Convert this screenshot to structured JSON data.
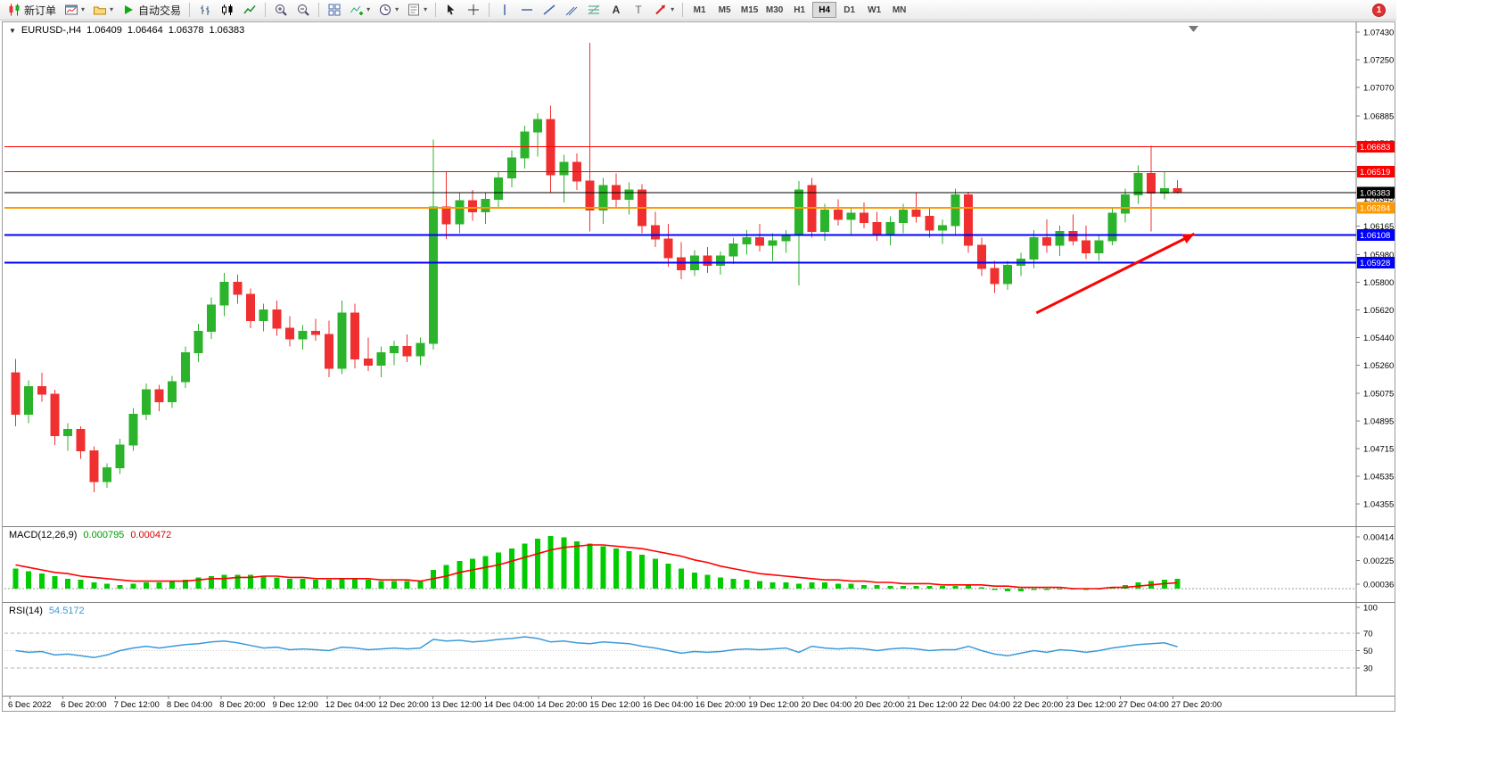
{
  "app": {
    "toolbar": {
      "new_order": "新订单",
      "autotrading": "自动交易",
      "timeframes": [
        "M1",
        "M5",
        "M15",
        "M30",
        "H1",
        "H4",
        "D1",
        "W1",
        "MN"
      ],
      "active_timeframe": "H4",
      "notification_count": "1",
      "icons": [
        "new-order-icon",
        "new-chart-icon",
        "profiles-icon",
        "autotrading-icon",
        "bar-chart-icon",
        "candlestick-chart-icon",
        "line-chart-icon",
        "zoom-in-icon",
        "zoom-out-icon",
        "tile-windows-icon",
        "indicators-icon",
        "periods-icon",
        "templates-icon",
        "cursor-icon",
        "crosshair-icon",
        "vertical-line-icon",
        "horizontal-line-icon",
        "trendline-icon",
        "equidistant-channel-icon",
        "fibonacci-icon",
        "text-icon",
        "text-label-icon",
        "arrows-icon",
        "dropdown-caret-icon",
        "chart-shift-marker"
      ]
    },
    "chart_header": {
      "symbol": "EURUSD-,H4",
      "open": "1.06409",
      "high": "1.06464",
      "low": "1.06378",
      "close": "1.06383"
    },
    "indicators": {
      "macd": {
        "name": "MACD(12,26,9)",
        "value_main": "0.000795",
        "value_signal": "0.000472"
      },
      "rsi": {
        "name": "RSI(14)",
        "value": "54.5172"
      }
    }
  },
  "colors": {
    "bull": "#2bb32b",
    "bear": "#f03030",
    "macd_histogram": "#00cc00",
    "macd_signal": "#ff0000",
    "rsi_line": "#3a9ad9",
    "bid_line": "#000000",
    "hline_red": "#ff0000",
    "hline_orange": "#ff9900",
    "hline_blue": "#0000ff",
    "arrow": "#ff0000"
  },
  "chart_data": [
    {
      "type": "candlestick",
      "title": "EURUSD-,H4",
      "ylim": [
        1.04355,
        1.0743
      ],
      "y_axis_labels": [
        "1.07430",
        "1.07250",
        "1.07070",
        "1.06885",
        "1.06705",
        "1.06525",
        "1.06345",
        "1.06165",
        "1.05980",
        "1.05800",
        "1.05620",
        "1.05440",
        "1.05260",
        "1.05075",
        "1.04895",
        "1.04715",
        "1.04535",
        "1.04355"
      ],
      "x_axis_labels": [
        "6 Dec 2022",
        "6 Dec 20:00",
        "7 Dec 12:00",
        "8 Dec 04:00",
        "8 Dec 20:00",
        "9 Dec 12:00",
        "12 Dec 04:00",
        "12 Dec 20:00",
        "13 Dec 12:00",
        "14 Dec 04:00",
        "14 Dec 20:00",
        "15 Dec 12:00",
        "16 Dec 04:00",
        "16 Dec 20:00",
        "19 Dec 12:00",
        "20 Dec 04:00",
        "20 Dec 20:00",
        "21 Dec 12:00",
        "22 Dec 04:00",
        "22 Dec 20:00",
        "23 Dec 12:00",
        "27 Dec 04:00",
        "27 Dec 20:00"
      ],
      "ohlc": [
        [
          1.0521,
          1.053,
          1.0486,
          1.0494
        ],
        [
          1.0494,
          1.0516,
          1.0488,
          1.0512
        ],
        [
          1.0512,
          1.0521,
          1.0502,
          1.0507
        ],
        [
          1.0507,
          1.051,
          1.0474,
          1.048
        ],
        [
          1.048,
          1.0488,
          1.047,
          1.0484
        ],
        [
          1.0484,
          1.0486,
          1.0465,
          1.047
        ],
        [
          1.047,
          1.0473,
          1.0443,
          1.045
        ],
        [
          1.045,
          1.0462,
          1.0446,
          1.0459
        ],
        [
          1.0459,
          1.0478,
          1.0455,
          1.0474
        ],
        [
          1.0474,
          1.0498,
          1.047,
          1.0494
        ],
        [
          1.0494,
          1.0514,
          1.049,
          1.051
        ],
        [
          1.051,
          1.0513,
          1.0496,
          1.0502
        ],
        [
          1.0502,
          1.0519,
          1.0498,
          1.0515
        ],
        [
          1.0515,
          1.0538,
          1.0511,
          1.0534
        ],
        [
          1.0534,
          1.0553,
          1.0528,
          1.0548
        ],
        [
          1.0548,
          1.057,
          1.0543,
          1.0565
        ],
        [
          1.0565,
          1.0586,
          1.0558,
          1.058
        ],
        [
          1.058,
          1.0585,
          1.0566,
          1.0572
        ],
        [
          1.0572,
          1.0576,
          1.055,
          1.0555
        ],
        [
          1.0555,
          1.0566,
          1.0548,
          1.0562
        ],
        [
          1.0562,
          1.0568,
          1.0545,
          1.055
        ],
        [
          1.055,
          1.0558,
          1.0538,
          1.0543
        ],
        [
          1.0543,
          1.0552,
          1.0536,
          1.0548
        ],
        [
          1.0548,
          1.0556,
          1.0542,
          1.0546
        ],
        [
          1.0546,
          1.0555,
          1.0518,
          1.0524
        ],
        [
          1.0524,
          1.0568,
          1.052,
          1.056
        ],
        [
          1.056,
          1.0566,
          1.0524,
          1.053
        ],
        [
          1.053,
          1.0544,
          1.0522,
          1.0526
        ],
        [
          1.0526,
          1.0538,
          1.0518,
          1.0534
        ],
        [
          1.0534,
          1.0542,
          1.0526,
          1.0538
        ],
        [
          1.0538,
          1.0546,
          1.0528,
          1.0532
        ],
        [
          1.0532,
          1.0544,
          1.0526,
          1.054
        ],
        [
          1.054,
          1.0673,
          1.0536,
          1.0629
        ],
        [
          1.0629,
          1.0652,
          1.0608,
          1.0618
        ],
        [
          1.0618,
          1.0638,
          1.0612,
          1.0633
        ],
        [
          1.0633,
          1.064,
          1.062,
          1.0626
        ],
        [
          1.0626,
          1.0638,
          1.0618,
          1.0634
        ],
        [
          1.0634,
          1.0652,
          1.0628,
          1.0648
        ],
        [
          1.0648,
          1.0666,
          1.0642,
          1.0661
        ],
        [
          1.0661,
          1.0682,
          1.0654,
          1.0678
        ],
        [
          1.0678,
          1.069,
          1.0662,
          1.0686
        ],
        [
          1.0686,
          1.0695,
          1.0638,
          1.065
        ],
        [
          1.065,
          1.0663,
          1.0632,
          1.0658
        ],
        [
          1.0658,
          1.0664,
          1.064,
          1.0646
        ],
        [
          1.0646,
          1.0736,
          1.0613,
          1.0627
        ],
        [
          1.0627,
          1.0648,
          1.0618,
          1.0643
        ],
        [
          1.0643,
          1.0651,
          1.0628,
          1.0634
        ],
        [
          1.0634,
          1.0645,
          1.0624,
          1.064
        ],
        [
          1.064,
          1.0644,
          1.0612,
          1.0617
        ],
        [
          1.0617,
          1.0626,
          1.0603,
          1.0608
        ],
        [
          1.0608,
          1.0618,
          1.059,
          1.0596
        ],
        [
          1.0596,
          1.0606,
          1.0582,
          1.0588
        ],
        [
          1.0588,
          1.0601,
          1.0584,
          1.0597
        ],
        [
          1.0597,
          1.0603,
          1.0586,
          1.0591
        ],
        [
          1.0591,
          1.06,
          1.0585,
          1.0597
        ],
        [
          1.0597,
          1.0609,
          1.0592,
          1.0605
        ],
        [
          1.0605,
          1.0614,
          1.0598,
          1.0609
        ],
        [
          1.0609,
          1.0618,
          1.06,
          1.0604
        ],
        [
          1.0604,
          1.0612,
          1.0594,
          1.0607
        ],
        [
          1.0607,
          1.0614,
          1.0599,
          1.0611
        ],
        [
          1.0611,
          1.0646,
          1.0578,
          1.064
        ],
        [
          1.0643,
          1.0648,
          1.0609,
          1.0613
        ],
        [
          1.0613,
          1.0631,
          1.0607,
          1.0627
        ],
        [
          1.0627,
          1.0634,
          1.0617,
          1.0621
        ],
        [
          1.0621,
          1.0629,
          1.0611,
          1.0625
        ],
        [
          1.0625,
          1.0632,
          1.0615,
          1.0619
        ],
        [
          1.0619,
          1.0626,
          1.0607,
          1.0611
        ],
        [
          1.0611,
          1.0623,
          1.0604,
          1.0619
        ],
        [
          1.0619,
          1.0631,
          1.0612,
          1.0627
        ],
        [
          1.0627,
          1.0638,
          1.0619,
          1.0623
        ],
        [
          1.0623,
          1.0629,
          1.0609,
          1.0614
        ],
        [
          1.0614,
          1.0621,
          1.0605,
          1.0617
        ],
        [
          1.0617,
          1.0641,
          1.0611,
          1.0637
        ],
        [
          1.0637,
          1.0639,
          1.0599,
          1.0604
        ],
        [
          1.0604,
          1.0609,
          1.0584,
          1.0589
        ],
        [
          1.0589,
          1.0594,
          1.0573,
          1.0579
        ],
        [
          1.0579,
          1.0594,
          1.0575,
          1.0591
        ],
        [
          1.0591,
          1.0599,
          1.0584,
          1.0595
        ],
        [
          1.0595,
          1.0614,
          1.0589,
          1.0609
        ],
        [
          1.0609,
          1.0621,
          1.0599,
          1.0604
        ],
        [
          1.0604,
          1.0617,
          1.0597,
          1.0613
        ],
        [
          1.0613,
          1.0624,
          1.0604,
          1.0607
        ],
        [
          1.0607,
          1.0617,
          1.0595,
          1.0599
        ],
        [
          1.0599,
          1.0611,
          1.0594,
          1.0607
        ],
        [
          1.0607,
          1.0629,
          1.0604,
          1.0625
        ],
        [
          1.0625,
          1.0641,
          1.0619,
          1.0637
        ],
        [
          1.0637,
          1.0656,
          1.0631,
          1.0651
        ],
        [
          1.0651,
          1.0669,
          1.0613,
          1.0638
        ],
        [
          1.0638,
          1.0652,
          1.0634,
          1.0641
        ],
        [
          1.06409,
          1.06464,
          1.06378,
          1.06383
        ]
      ],
      "horizontal_lines": [
        {
          "price": 1.06683,
          "label": "1.06683",
          "color": "#ff0000",
          "width": 1
        },
        {
          "price": 1.06519,
          "label": "1.06519",
          "color": "#ff0000",
          "width": 1
        },
        {
          "price": 1.06383,
          "label": "1.06383",
          "color": "#000000",
          "width": 1,
          "role": "bid-price"
        },
        {
          "price": 1.06284,
          "label": "1.06284",
          "color": "#ff9900",
          "width": 2
        },
        {
          "price": 1.06108,
          "label": "1.06108",
          "color": "#0000ff",
          "width": 2
        },
        {
          "price": 1.05928,
          "label": "1.05928",
          "color": "#0000ff",
          "width": 2
        }
      ],
      "annotations": [
        {
          "type": "arrow",
          "color": "#ff0000",
          "from": {
            "bar": 78.2,
            "price": 1.056
          },
          "to": {
            "bar": 90.3,
            "price": 1.06115
          }
        }
      ]
    },
    {
      "type": "bar",
      "name": "MACD(12,26,9)",
      "current": {
        "macd": 0.000795,
        "signal": 0.000472
      },
      "y_axis_labels": [
        "0.004145",
        "0.002255",
        "0.000366"
      ],
      "histogram": [
        0.0016,
        0.0014,
        0.0012,
        0.001,
        0.0008,
        0.0007,
        0.0005,
        0.0004,
        0.0003,
        0.0004,
        0.0005,
        0.0005,
        0.0006,
        0.0007,
        0.0009,
        0.001,
        0.0011,
        0.0011,
        0.0011,
        0.001,
        0.0009,
        0.0008,
        0.0008,
        0.0007,
        0.0007,
        0.0008,
        0.0008,
        0.0007,
        0.0006,
        0.0006,
        0.0006,
        0.0006,
        0.0015,
        0.0019,
        0.0022,
        0.0024,
        0.0026,
        0.0029,
        0.0032,
        0.0036,
        0.004,
        0.0042,
        0.0041,
        0.0038,
        0.0036,
        0.0034,
        0.0032,
        0.003,
        0.0027,
        0.0024,
        0.002,
        0.0016,
        0.0013,
        0.0011,
        0.0009,
        0.0008,
        0.0007,
        0.0006,
        0.0005,
        0.0005,
        0.0004,
        0.0005,
        0.0005,
        0.0004,
        0.0004,
        0.0003,
        0.0003,
        0.0002,
        0.0002,
        0.0002,
        0.0002,
        0.0002,
        0.0002,
        0.0003,
        0.0001,
        -0.0001,
        -0.0002,
        -0.0002,
        -0.0001,
        -0.0001,
        0.0,
        0.0,
        -0.0001,
        0.0,
        0.0001,
        0.0003,
        0.0005,
        0.0006,
        0.0007,
        0.000795
      ],
      "signal_line": [
        0.0019,
        0.0017,
        0.0015,
        0.0013,
        0.0012,
        0.001,
        0.0009,
        0.0008,
        0.0007,
        0.0006,
        0.0006,
        0.0006,
        0.0006,
        0.0006,
        0.0007,
        0.0008,
        0.0008,
        0.0009,
        0.0009,
        0.001,
        0.001,
        0.0009,
        0.0009,
        0.0008,
        0.0008,
        0.0008,
        0.0008,
        0.0008,
        0.0007,
        0.0007,
        0.0007,
        0.0006,
        0.0008,
        0.001,
        0.0013,
        0.0015,
        0.0017,
        0.0019,
        0.0022,
        0.0025,
        0.0028,
        0.0031,
        0.0033,
        0.0034,
        0.0035,
        0.0035,
        0.0034,
        0.0033,
        0.0032,
        0.003,
        0.0028,
        0.0026,
        0.0023,
        0.0021,
        0.0018,
        0.0016,
        0.0014,
        0.0012,
        0.0011,
        0.001,
        0.0009,
        0.0008,
        0.0007,
        0.0007,
        0.0006,
        0.0006,
        0.0005,
        0.0005,
        0.0004,
        0.0004,
        0.0004,
        0.0003,
        0.0003,
        0.0003,
        0.0003,
        0.0002,
        0.0002,
        0.0001,
        0.0001,
        0.0001,
        0.0001,
        0.0,
        0.0,
        0.0,
        0.0001,
        0.0001,
        0.0002,
        0.0003,
        0.0004,
        0.000472
      ]
    },
    {
      "type": "line",
      "name": "RSI(14)",
      "current": 54.5172,
      "ylim": [
        0,
        100
      ],
      "levels": [
        70,
        50,
        30
      ],
      "y_axis_labels": [
        "100",
        "70",
        "50",
        "30"
      ],
      "values": [
        50,
        48,
        49,
        45,
        46,
        44,
        42,
        45,
        50,
        53,
        55,
        53,
        55,
        57,
        58,
        60,
        61,
        59,
        56,
        53,
        54,
        51,
        52,
        51,
        50,
        54,
        53,
        51,
        52,
        53,
        52,
        53,
        63,
        61,
        62,
        60,
        61,
        63,
        64,
        66,
        64,
        60,
        61,
        59,
        58,
        60,
        59,
        58,
        55,
        53,
        50,
        47,
        49,
        48,
        49,
        51,
        52,
        51,
        52,
        53,
        48,
        55,
        53,
        52,
        53,
        52,
        50,
        52,
        53,
        52,
        50,
        51,
        51,
        55,
        50,
        46,
        44,
        47,
        50,
        48,
        51,
        50,
        48,
        50,
        53,
        55,
        57,
        58,
        59,
        54.5172
      ]
    }
  ]
}
